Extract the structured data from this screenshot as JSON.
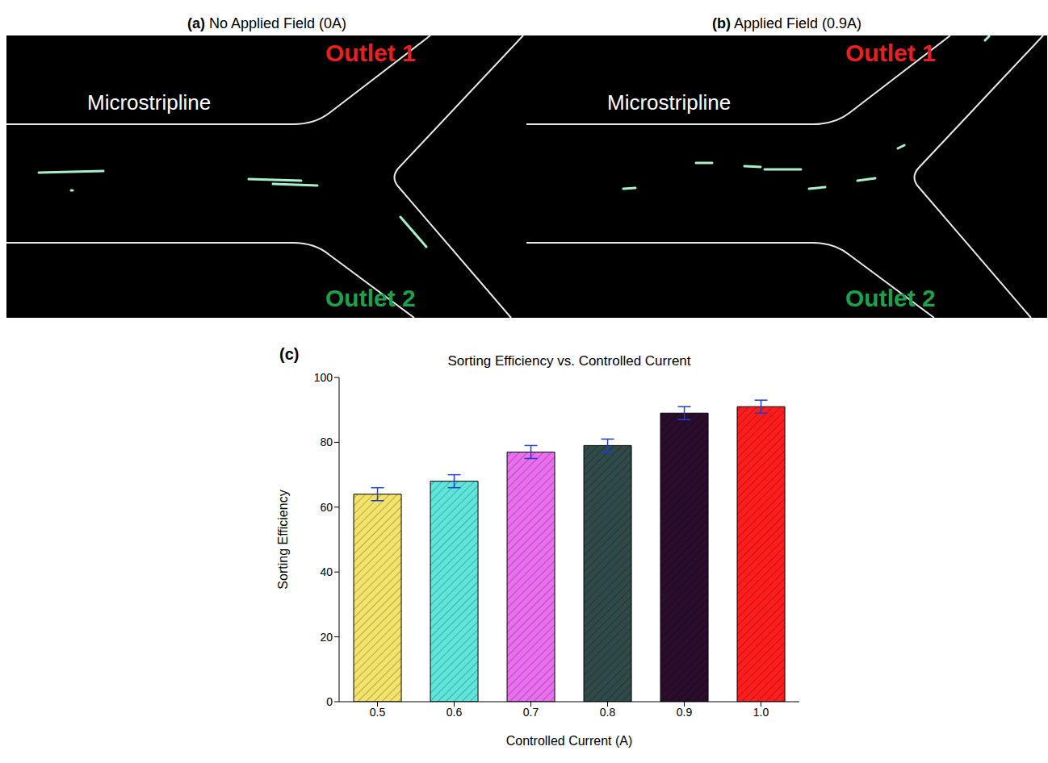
{
  "panels": [
    {
      "letter": "(a)",
      "title": "No Applied Field (0A)",
      "channel_label": "Microstripline",
      "outlets": [
        "Outlet 1",
        "Outlet 2"
      ]
    },
    {
      "letter": "(b)",
      "title": "Applied Field (0.9A)",
      "channel_label": "Microstripline",
      "outlets": [
        "Outlet 1",
        "Outlet 2"
      ]
    }
  ],
  "chart_data": {
    "type": "bar",
    "panel_letter": "(c)",
    "title": "Sorting Efficiency vs. Controlled Current",
    "x_label": "Controlled Current (A)",
    "y_label": "Sorting Efficiency",
    "categories": [
      "0.5",
      "0.6",
      "0.7",
      "0.8",
      "0.9",
      "1.0"
    ],
    "values": [
      64,
      68,
      77,
      79,
      89,
      91
    ],
    "errors": [
      2,
      2,
      2,
      2,
      2,
      2
    ],
    "colors": [
      "#f3e36a",
      "#5fe6da",
      "#ea6ef0",
      "#2f4a48",
      "#2a0c2c",
      "#ff1c1c"
    ],
    "ylim": [
      0,
      100
    ],
    "yticks": [
      0,
      20,
      40,
      60,
      80,
      100
    ],
    "grid": false
  }
}
